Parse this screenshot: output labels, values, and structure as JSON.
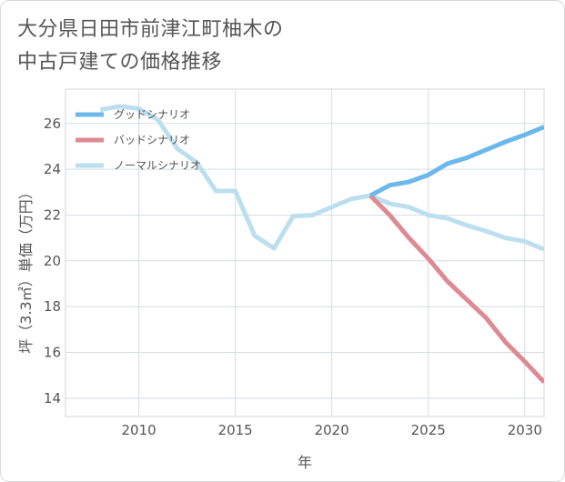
{
  "title_lines": [
    "大分県日田市前津江町柚木の",
    "中古戸建ての価格推移"
  ],
  "chart_data": {
    "type": "line",
    "xlabel": "年",
    "ylabel": "坪（3.3㎡）単価（万円）",
    "xlim": [
      2006.2,
      2031
    ],
    "ylim": [
      13.2,
      27.5
    ],
    "x_ticks": [
      2010,
      2015,
      2020,
      2025,
      2030
    ],
    "y_ticks": [
      14,
      16,
      18,
      20,
      22,
      24,
      26
    ],
    "grid": true,
    "legend_position": "top-left",
    "series": [
      {
        "name": "グッドシナリオ",
        "color": "#6cb8ea",
        "x": [
          2022,
          2023,
          2024,
          2025,
          2026,
          2027,
          2028,
          2029,
          2030,
          2031
        ],
        "y": [
          22.85,
          23.3,
          23.45,
          23.75,
          24.25,
          24.5,
          24.85,
          25.2,
          25.5,
          25.85
        ]
      },
      {
        "name": "バッドシナリオ",
        "color": "#de8a93",
        "x": [
          2022,
          2023,
          2024,
          2025,
          2026,
          2027,
          2028,
          2029,
          2030,
          2031
        ],
        "y": [
          22.85,
          22.0,
          21.0,
          20.1,
          19.1,
          18.3,
          17.5,
          16.45,
          15.6,
          14.7
        ]
      },
      {
        "name": "ノーマルシナリオ",
        "color": "#bcdff0",
        "x": [
          2008,
          2009,
          2010,
          2011,
          2012,
          2013,
          2014,
          2015,
          2016,
          2017,
          2018,
          2019,
          2020,
          2021,
          2022,
          2023,
          2024,
          2025,
          2026,
          2027,
          2028,
          2029,
          2030,
          2031
        ],
        "y": [
          26.6,
          26.75,
          26.65,
          26.15,
          24.9,
          24.3,
          23.05,
          23.05,
          21.1,
          20.55,
          21.95,
          22.0,
          22.35,
          22.7,
          22.85,
          22.5,
          22.35,
          22.0,
          21.85,
          21.55,
          21.3,
          21.0,
          20.85,
          20.5
        ]
      }
    ]
  }
}
